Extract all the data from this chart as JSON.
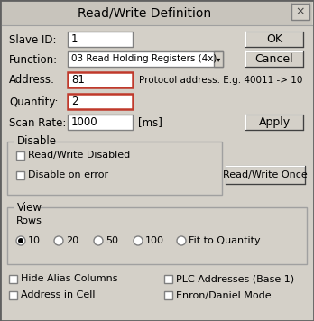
{
  "title": "Read/Write Definition",
  "bg_color": "#d4d0c8",
  "white": "#ffffff",
  "red_border": "#c0392b",
  "fields": {
    "slave_id_label": "Slave ID:",
    "slave_id_value": "1",
    "function_label": "Function:",
    "function_value": "03 Read Holding Registers (4x)",
    "address_label": "Address:",
    "address_value": "81",
    "address_hint": "Protocol address. E.g. 40011 -> 10",
    "quantity_label": "Quantity:",
    "quantity_value": "2",
    "scan_rate_label": "Scan Rate:",
    "scan_rate_value": "1000",
    "scan_rate_unit": "[ms]"
  },
  "buttons": {
    "ok": "OK",
    "cancel": "Cancel",
    "apply": "Apply",
    "read_write_once": "Read/Write Once"
  },
  "disable_group": {
    "label": "Disable",
    "cb1": "Read/Write Disabled",
    "cb2": "Disable on error"
  },
  "view_group": {
    "label": "View",
    "rows_label": "Rows",
    "radio_options": [
      "10",
      "20",
      "50",
      "100",
      "Fit to Quantity"
    ],
    "radio_selected": 0
  },
  "checkboxes_bottom": [
    "Hide Alias Columns",
    "PLC Addresses (Base 1)",
    "Address in Cell",
    "Enron/Daniel Mode"
  ]
}
